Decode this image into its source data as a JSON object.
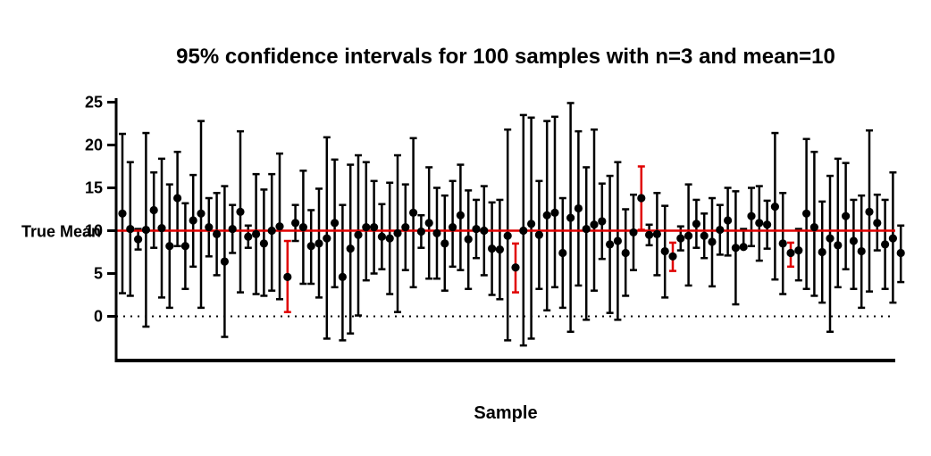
{
  "chart_data": {
    "type": "scatter",
    "title": "95% confidence intervals for 100 samples with n=3 and mean=10",
    "xlabel": "Sample",
    "ylabel": "",
    "ylim": [
      -5,
      25
    ],
    "yticks": [
      0,
      5,
      10,
      15,
      20,
      25
    ],
    "reference_line": {
      "label": "True Mean",
      "value": 10,
      "color": "#e00000"
    },
    "zero_line": {
      "value": 0,
      "style": "dotted"
    },
    "colors": {
      "default": "#000000",
      "miss": "#e00000"
    },
    "series": [
      {
        "x": [
          1,
          2,
          3,
          4,
          5,
          6,
          7,
          8,
          9,
          10,
          11,
          12,
          13,
          14,
          15,
          16,
          17,
          18,
          19,
          20,
          21,
          22,
          23,
          24,
          25,
          26,
          27,
          28,
          29,
          30,
          31,
          32,
          33,
          34,
          35,
          36,
          37,
          38,
          39,
          40,
          41,
          42,
          43,
          44,
          45,
          46,
          47,
          48,
          49,
          50,
          51,
          52,
          53,
          54,
          55,
          56,
          57,
          58,
          59,
          60,
          61,
          62,
          63,
          64,
          65,
          66,
          67,
          68,
          69,
          70,
          71,
          72,
          73,
          74,
          75,
          76,
          77,
          78,
          79,
          80,
          81,
          82,
          83,
          84,
          85,
          86,
          87,
          88,
          89,
          90,
          91,
          92,
          93,
          94,
          95,
          96,
          97,
          98,
          99,
          100
        ],
        "mean": [
          12.0,
          10.2,
          9.0,
          10.1,
          12.4,
          10.3,
          8.2,
          13.8,
          8.2,
          11.2,
          12.0,
          10.4,
          9.6,
          6.4,
          10.2,
          12.2,
          9.3,
          9.6,
          8.5,
          10.0,
          10.5,
          4.6,
          10.9,
          10.4,
          8.2,
          8.5,
          9.1,
          10.9,
          4.6,
          7.9,
          9.5,
          10.4,
          10.4,
          9.3,
          9.1,
          9.7,
          10.4,
          12.1,
          9.9,
          10.9,
          9.7,
          8.5,
          10.4,
          11.8,
          9.0,
          10.2,
          10.0,
          7.9,
          7.8,
          9.4,
          5.7,
          10.0,
          10.8,
          9.5,
          11.8,
          12.1,
          7.4,
          11.5,
          12.6,
          10.2,
          10.7,
          11.1,
          8.4,
          8.8,
          7.4,
          9.8,
          13.8,
          9.5,
          9.6,
          7.6,
          7.0,
          9.1,
          9.4,
          10.8,
          9.4,
          8.7,
          10.1,
          11.2,
          8.0,
          8.1,
          11.7,
          10.9,
          10.7,
          12.8,
          8.5,
          7.4,
          7.7,
          12.0,
          10.4,
          7.5,
          9.1,
          8.3,
          11.7,
          8.8,
          7.6,
          12.2,
          10.9,
          8.4,
          9.1,
          7.4
        ],
        "lower": [
          2.7,
          2.4,
          7.8,
          -1.2,
          8.0,
          2.2,
          1.0,
          8.2,
          3.2,
          5.8,
          1.0,
          7.0,
          4.8,
          -2.4,
          7.4,
          2.8,
          8.0,
          2.6,
          2.4,
          3.0,
          2.0,
          0.5,
          8.8,
          3.8,
          3.8,
          2.2,
          -2.6,
          3.4,
          -2.8,
          -2.0,
          0.1,
          4.2,
          5.0,
          5.5,
          2.6,
          0.5,
          5.4,
          3.4,
          8.0,
          4.4,
          4.4,
          3.0,
          5.8,
          5.4,
          3.2,
          6.8,
          4.8,
          2.5,
          2.0,
          -2.8,
          2.8,
          -3.4,
          -2.6,
          3.2,
          0.7,
          3.4,
          1.0,
          -1.8,
          3.6,
          -0.4,
          3.0,
          6.7,
          0.4,
          -0.4,
          2.4,
          5.4,
          10.1,
          8.3,
          4.8,
          2.2,
          5.3,
          7.7,
          3.6,
          8.0,
          6.8,
          3.5,
          7.2,
          7.1,
          1.4,
          8.0,
          8.2,
          6.5,
          7.9,
          4.3,
          2.6,
          5.8,
          4.2,
          3.2,
          2.4,
          1.6,
          -1.8,
          3.4,
          5.5,
          3.2,
          1.0,
          2.9,
          7.7,
          3.2,
          1.6,
          4.0
        ],
        "upper": [
          21.3,
          18.0,
          10.2,
          21.4,
          16.8,
          18.4,
          15.4,
          19.2,
          13.2,
          16.5,
          22.8,
          13.8,
          14.4,
          15.2,
          13.0,
          21.6,
          10.6,
          16.6,
          14.8,
          16.6,
          19.0,
          8.8,
          13.0,
          17.0,
          12.4,
          14.9,
          20.9,
          18.3,
          13.0,
          17.7,
          18.8,
          18.0,
          15.8,
          13.1,
          15.6,
          18.8,
          15.4,
          20.8,
          11.8,
          17.4,
          15.0,
          14.1,
          15.8,
          17.7,
          14.7,
          13.6,
          15.2,
          13.3,
          13.6,
          21.8,
          8.5,
          23.5,
          23.2,
          15.8,
          22.8,
          23.3,
          13.8,
          24.9,
          21.6,
          17.4,
          21.8,
          15.5,
          16.4,
          18.0,
          12.5,
          14.2,
          17.5,
          10.7,
          14.4,
          12.9,
          8.6,
          10.5,
          15.4,
          13.6,
          12.0,
          13.8,
          13.0,
          15.0,
          14.6,
          10.2,
          15.0,
          15.2,
          13.5,
          21.4,
          14.4,
          8.6,
          10.2,
          20.7,
          19.2,
          13.4,
          16.4,
          18.4,
          17.9,
          13.6,
          14.1,
          21.7,
          14.2,
          13.6,
          16.8,
          10.6
        ]
      }
    ]
  }
}
